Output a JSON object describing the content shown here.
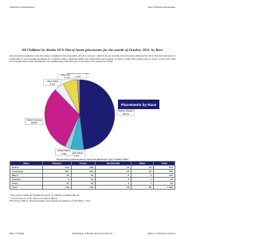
{
  "header": {
    "left": "Statistical Information",
    "right": "Out-of-Home Placement"
  },
  "title": "All Children In Alaska OCS Out-of-home placements for the month of October, 2011, by Race",
  "intro": "Out-of-home placements is the last option considered when reasonable efforts to prevent a child from out-of-home care have been exhausted by OCS. The first preference is relative/kin of out-of-home placements for a child in order to maintain family ties. When this is not possible we place a child with a family who is ready to protect the child in a licensed foster home. Residential care facilities may offer the level of structured care needed for a child.",
  "chart_data": {
    "type": "pie",
    "title": "Placements by Race",
    "categories": [
      "Native/ Alaskan",
      "Black/ Mixed",
      "White/ Mixed",
      "White/ Nonhisp",
      "Other/ Multi",
      "Other/ Mixed",
      "Undetermined/ Unable"
    ],
    "values": [
      48.1,
      6.0,
      2.8,
      30.8,
      4.5,
      6.7,
      1.1
    ],
    "value_labels": [
      "48.1%",
      "6.0%",
      "2.8%",
      "30.8%",
      "4.5%",
      "6.7%",
      "1.1%"
    ],
    "colors": [
      "#1c1c72",
      "#3aaed4",
      "#8fd0e0",
      "#c81e8c",
      "#f0f0f8",
      "#e8d84a",
      "#a0a0c8"
    ]
  },
  "table": {
    "caption": "Out-of-home placements by race and placement type, October 2011",
    "header": [
      "Race",
      "Relative",
      "Foster",
      "Residential",
      "Other",
      "Total"
    ],
    "rows": [
      [
        "Native",
        "412",
        "398",
        "41",
        "23",
        "874"
      ],
      [
        "Caucasian",
        "251",
        "262",
        "24",
        "22",
        "559"
      ],
      [
        "Black",
        "46",
        "52",
        "6",
        "5",
        "109"
      ],
      [
        "Hispanic",
        "9",
        "12",
        "2",
        "1",
        "24"
      ],
      [
        "Asian",
        "31",
        "39",
        "5",
        "7",
        "82"
      ],
      [
        "Total",
        "749",
        "763",
        "78",
        "58",
        "1,648"
      ]
    ]
  },
  "notes": [
    "* Data source: Alaska OCS Online Resources for Children of Alaska (ORCA).",
    "** Race is the race of the child as recorded in ORCA.",
    "Data Source: ORCA - Research Analyst, Out-of-home placements as of November 1, 2011."
  ],
  "footer": {
    "left": "Dept of Family",
    "center": "Department of Health and Social Services",
    "right": "Office of Children's Services"
  }
}
